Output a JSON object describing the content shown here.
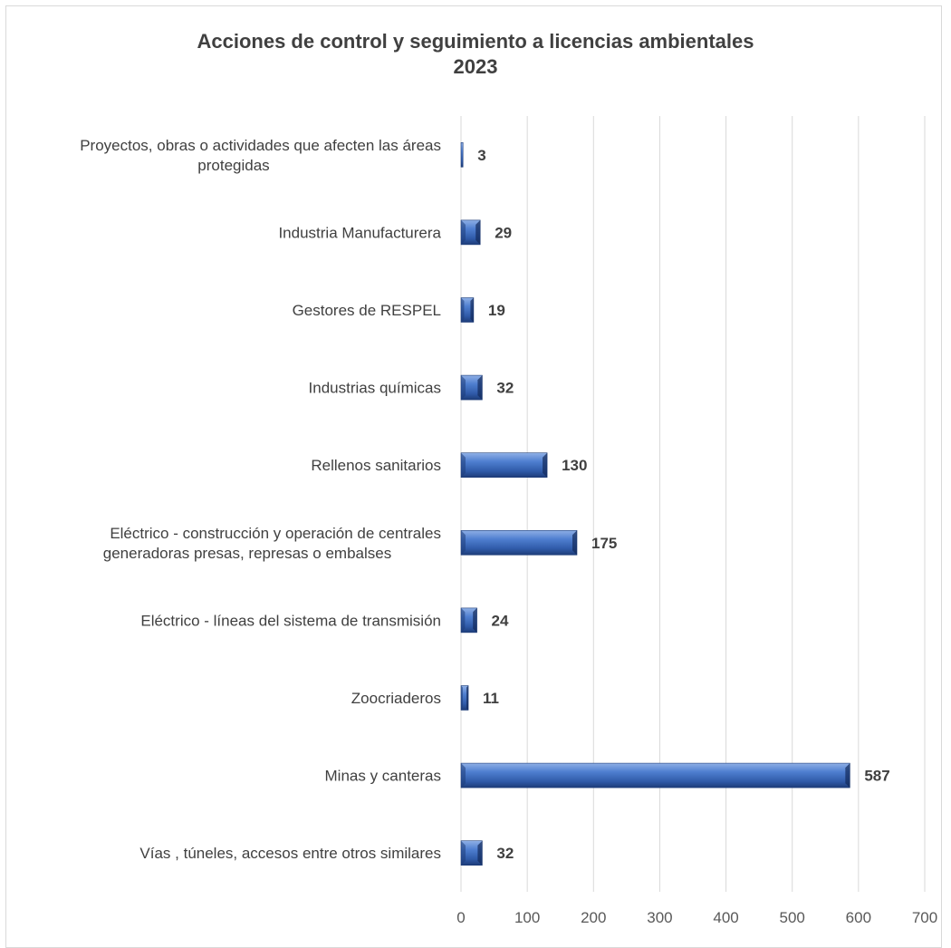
{
  "chart_data": {
    "type": "bar",
    "orientation": "horizontal",
    "title": "Acciones de control y seguimiento a licencias ambientales",
    "subtitle": "2023",
    "categories": [
      [
        "Proyectos, obras o actividades que afecten las áreas",
        "protegidas"
      ],
      [
        "Industria Manufacturera"
      ],
      [
        "Gestores de RESPEL"
      ],
      [
        "Industrias químicas"
      ],
      [
        "Rellenos sanitarios"
      ],
      [
        "Eléctrico - construcción y operación de centrales",
        "generadoras presas, represas o embalses"
      ],
      [
        "Eléctrico - líneas del sistema de transmisión"
      ],
      [
        "Zoocriaderos"
      ],
      [
        "Minas y canteras"
      ],
      [
        "Vías , túneles, accesos entre otros similares"
      ]
    ],
    "values": [
      3,
      29,
      19,
      32,
      130,
      175,
      24,
      11,
      587,
      32
    ],
    "value_labels": [
      "3",
      "29",
      "19",
      "32",
      "130",
      "175",
      "24",
      "11",
      "587",
      "32"
    ],
    "xlim": [
      0,
      700
    ],
    "x_ticks": [
      "0",
      "100",
      "200",
      "300",
      "400",
      "500",
      "600",
      "700"
    ],
    "grid": true,
    "bar_color": "#3a67b8"
  }
}
